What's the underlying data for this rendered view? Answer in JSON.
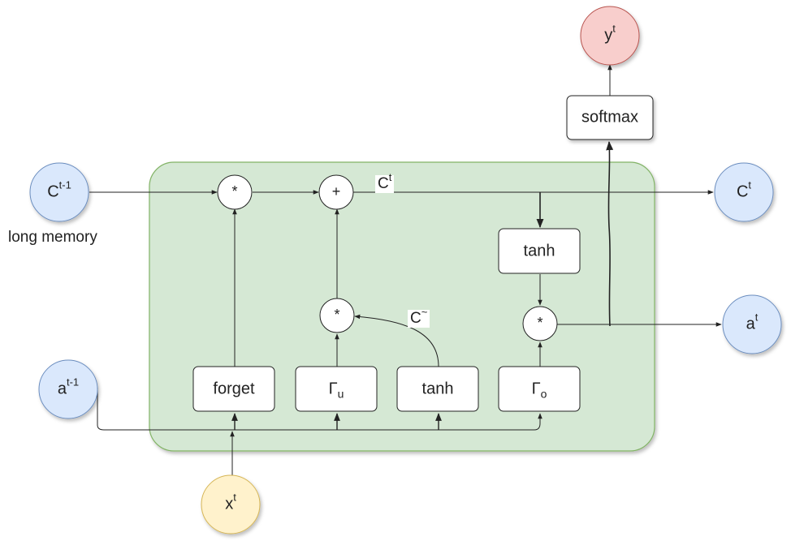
{
  "inputs": {
    "c_prev": {
      "base": "C",
      "sup": "t-1"
    },
    "a_prev": {
      "base": "a",
      "sup": "t-1"
    },
    "x": {
      "base": "x",
      "sup": "t"
    }
  },
  "outputs": {
    "c": {
      "base": "C",
      "sup": "t"
    },
    "a": {
      "base": "a",
      "sup": "t"
    },
    "y": {
      "base": "y",
      "sup": "t"
    }
  },
  "caption_long_memory": "long memory",
  "gates": {
    "forget": {
      "text": "forget"
    },
    "update": {
      "base": "Γ",
      "sub": "u"
    },
    "candidate": {
      "text": "tanh"
    },
    "output": {
      "base": "Γ",
      "sub": "o"
    }
  },
  "cell_tanh": "tanh",
  "softmax": "softmax",
  "ops": {
    "mul_forget": "*",
    "add": "+",
    "mul_update": "*",
    "mul_output": "*"
  },
  "edge_labels": {
    "cell_state": {
      "base": "C",
      "sup": "t"
    },
    "candidate": {
      "base": "C",
      "sup": "~"
    }
  },
  "colors": {
    "cell_fill": "#d5e8d4",
    "cell_stroke": "#82b366",
    "state_circle": "#dae8fc",
    "state_stroke": "#6c8ebf",
    "output_circle": "#f8cecc",
    "output_stroke": "#b85450",
    "input_circle": "#fff2cc",
    "input_stroke": "#d6b656"
  }
}
